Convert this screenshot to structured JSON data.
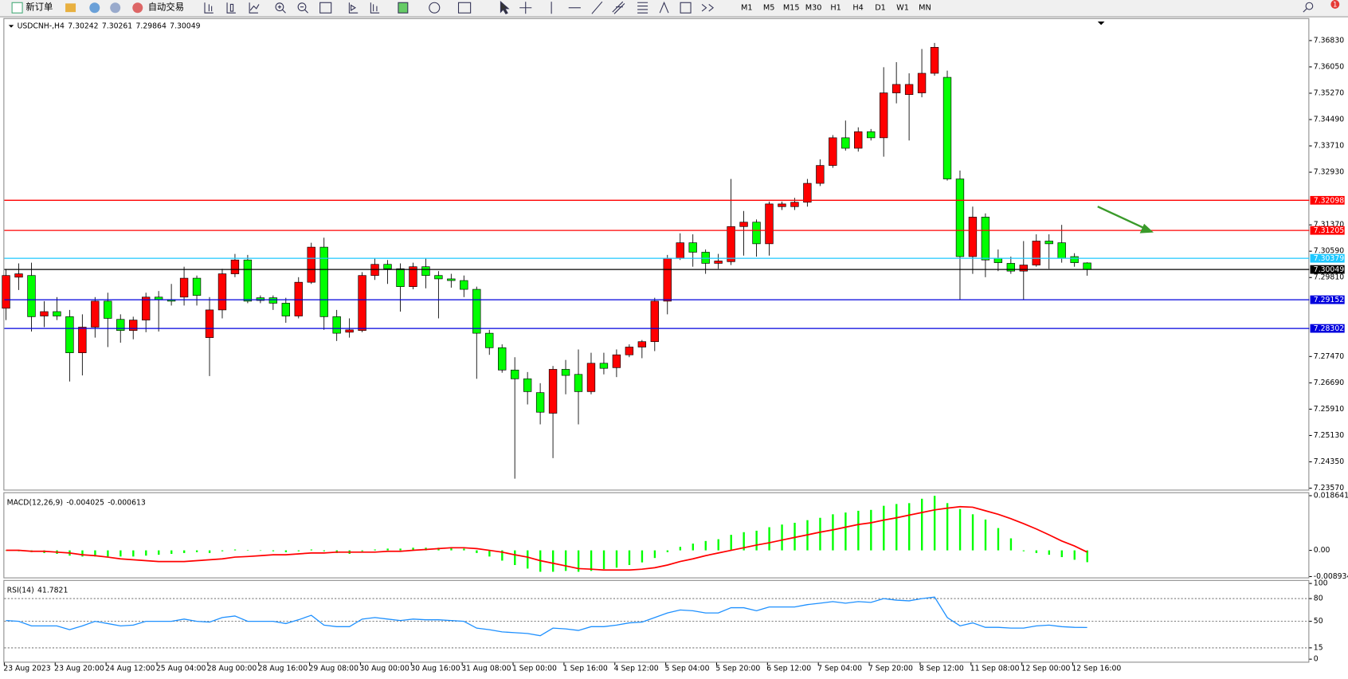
{
  "toolbar": {
    "new_order": "新订单",
    "auto_trading": "自动交易",
    "timeframes": [
      "M1",
      "M5",
      "M15",
      "M30",
      "H1",
      "H4",
      "D1",
      "W1",
      "MN"
    ],
    "badge": "1"
  },
  "chart_data": [
    {
      "type": "candlestick",
      "title": "USDCNH-,H4",
      "up_color": "#ff0000",
      "down_color": "#00ff00",
      "grid": false,
      "ylim": [
        7.235,
        7.3747
      ],
      "yticks": [
        {
          "value": 7.3683,
          "label": "7.36830"
        },
        {
          "value": 7.3605,
          "label": "7.36050"
        },
        {
          "value": 7.3527,
          "label": "7.35270"
        },
        {
          "value": 7.3449,
          "label": "7.34490"
        },
        {
          "value": 7.3371,
          "label": "7.33710"
        },
        {
          "value": 7.3293,
          "label": "7.32930"
        },
        {
          "value": 7.3137,
          "label": "7.31370"
        },
        {
          "value": 7.3059,
          "label": "7.30590"
        },
        {
          "value": 7.2981,
          "label": "7.29810"
        },
        {
          "value": 7.2747,
          "label": "7.27470"
        },
        {
          "value": 7.2669,
          "label": "7.26690"
        },
        {
          "value": 7.2591,
          "label": "7.25910"
        },
        {
          "value": 7.2513,
          "label": "7.25130"
        },
        {
          "value": 7.2435,
          "label": "7.24350"
        },
        {
          "value": 7.2357,
          "label": "7.23570"
        }
      ],
      "hlines": [
        {
          "value": 7.32098,
          "color": "#ff0000"
        },
        {
          "value": 7.31205,
          "color": "#ff0000"
        },
        {
          "value": 7.30379,
          "color": "#1ec8ff"
        },
        {
          "value": 7.30049,
          "color": "#000000"
        },
        {
          "value": 7.29152,
          "color": "#0000dd"
        },
        {
          "value": 7.28302,
          "color": "#0000dd"
        }
      ],
      "ohlc": [
        [
          7.289,
          7.3005,
          7.2855,
          7.2987
        ],
        [
          7.2982,
          7.3023,
          7.2944,
          7.2992
        ],
        [
          7.2987,
          7.3025,
          7.2821,
          7.2865
        ],
        [
          7.2867,
          7.2911,
          7.2834,
          7.288
        ],
        [
          7.288,
          7.2923,
          7.2855,
          7.2867
        ],
        [
          7.2865,
          7.2885,
          7.2673,
          7.2758
        ],
        [
          7.2758,
          7.2872,
          7.2691,
          7.2834
        ],
        [
          7.2834,
          7.2923,
          7.2803,
          7.2911
        ],
        [
          7.2911,
          7.2936,
          7.2775,
          7.286
        ],
        [
          7.2857,
          7.2872,
          7.2788,
          7.2824
        ],
        [
          7.2824,
          7.2865,
          7.2798,
          7.2855
        ],
        [
          7.2855,
          7.2936,
          7.2819,
          7.2923
        ],
        [
          7.2923,
          7.2941,
          7.2821,
          7.2916
        ],
        [
          7.2916,
          7.2962,
          7.2898,
          7.2911
        ],
        [
          7.2923,
          7.3013,
          7.2898,
          7.2979
        ],
        [
          7.2979,
          7.2987,
          7.2898,
          7.2928
        ],
        [
          7.2803,
          7.2923,
          7.2689,
          7.2885
        ],
        [
          7.2885,
          7.3007,
          7.286,
          7.2992
        ],
        [
          7.2992,
          7.3051,
          7.2982,
          7.3033
        ],
        [
          7.3033,
          7.3048,
          7.2905,
          7.2911
        ],
        [
          7.2921,
          7.2928,
          7.2905,
          7.2913
        ],
        [
          7.2921,
          7.2928,
          7.2885,
          7.2905
        ],
        [
          7.2905,
          7.2921,
          7.2847,
          7.2867
        ],
        [
          7.2867,
          7.2982,
          7.286,
          7.2967
        ],
        [
          7.2967,
          7.3084,
          7.2962,
          7.3071
        ],
        [
          7.3071,
          7.3099,
          7.2826,
          7.2865
        ],
        [
          7.2865,
          7.2885,
          7.2793,
          7.2816
        ],
        [
          7.2819,
          7.286,
          7.2803,
          7.2826
        ],
        [
          7.2824,
          7.2997,
          7.2819,
          7.2987
        ],
        [
          7.2987,
          7.3038,
          7.2974,
          7.302
        ],
        [
          7.302,
          7.3033,
          7.2962,
          7.3007
        ],
        [
          7.3007,
          7.3023,
          7.288,
          7.2954
        ],
        [
          7.2954,
          7.3025,
          7.2946,
          7.3013
        ],
        [
          7.3013,
          7.3038,
          7.2949,
          7.2987
        ],
        [
          7.2987,
          7.3,
          7.286,
          7.2977
        ],
        [
          7.2977,
          7.2992,
          7.2951,
          7.2972
        ],
        [
          7.2972,
          7.2987,
          7.2923,
          7.2946
        ],
        [
          7.2946,
          7.2954,
          7.2681,
          7.2816
        ],
        [
          7.2816,
          7.2826,
          7.2752,
          7.2773
        ],
        [
          7.2773,
          7.2783,
          7.2699,
          7.2707
        ],
        [
          7.2707,
          7.2745,
          7.2385,
          7.2681
        ],
        [
          7.2681,
          7.2701,
          7.2605,
          7.2643
        ],
        [
          7.264,
          7.2668,
          7.2546,
          7.2582
        ],
        [
          7.2579,
          7.2719,
          7.2446,
          7.2709
        ],
        [
          7.2709,
          7.2737,
          7.2635,
          7.2691
        ],
        [
          7.2694,
          7.2768,
          7.2546,
          7.2643
        ],
        [
          7.2643,
          7.2758,
          7.2635,
          7.2727
        ],
        [
          7.2727,
          7.2758,
          7.2694,
          7.2712
        ],
        [
          7.2714,
          7.2768,
          7.2686,
          7.2752
        ],
        [
          7.2752,
          7.2783,
          7.2745,
          7.2775
        ],
        [
          7.2775,
          7.2796,
          7.2742,
          7.2791
        ],
        [
          7.2791,
          7.2921,
          7.2763,
          7.2911
        ],
        [
          7.2911,
          7.3048,
          7.2872,
          7.3038
        ],
        [
          7.3038,
          7.3112,
          7.3033,
          7.3084
        ],
        [
          7.3084,
          7.3109,
          7.3013,
          7.3056
        ],
        [
          7.3056,
          7.3064,
          7.2992,
          7.3023
        ],
        [
          7.3023,
          7.3051,
          7.3007,
          7.303
        ],
        [
          7.3028,
          7.3273,
          7.3018,
          7.3132
        ],
        [
          7.3132,
          7.3178,
          7.3046,
          7.3145
        ],
        [
          7.3145,
          7.3153,
          7.3043,
          7.3081
        ],
        [
          7.3081,
          7.3206,
          7.3046,
          7.3199
        ],
        [
          7.3191,
          7.3206,
          7.3181,
          7.3199
        ],
        [
          7.3191,
          7.3217,
          7.3181,
          7.3204
        ],
        [
          7.3204,
          7.3273,
          7.3191,
          7.326
        ],
        [
          7.326,
          7.3331,
          7.3252,
          7.3313
        ],
        [
          7.3313,
          7.3403,
          7.3306,
          7.3395
        ],
        [
          7.3395,
          7.3446,
          7.3357,
          7.3364
        ],
        [
          7.3364,
          7.3426,
          7.3354,
          7.3413
        ],
        [
          7.3413,
          7.3421,
          7.3387,
          7.3395
        ],
        [
          7.3395,
          7.3604,
          7.3339,
          7.3528
        ],
        [
          7.3528,
          7.3619,
          7.3497,
          7.3553
        ],
        [
          7.3523,
          7.3586,
          7.3387,
          7.3553
        ],
        [
          7.3528,
          7.3658,
          7.3515,
          7.3586
        ],
        [
          7.3586,
          7.3676,
          7.3579,
          7.3663
        ],
        [
          7.3574,
          7.3594,
          7.3268,
          7.3273
        ],
        [
          7.3273,
          7.3298,
          7.2916,
          7.3043
        ],
        [
          7.3043,
          7.3191,
          7.2992,
          7.316
        ],
        [
          7.316,
          7.3171,
          7.2982,
          7.3033
        ],
        [
          7.3038,
          7.3064,
          7.3,
          7.3025
        ],
        [
          7.3023,
          7.3043,
          7.2992,
          7.3
        ],
        [
          7.3,
          7.3089,
          7.2916,
          7.3018
        ],
        [
          7.3018,
          7.3109,
          7.3013,
          7.3089
        ],
        [
          7.3089,
          7.3109,
          7.3007,
          7.3081
        ],
        [
          7.3084,
          7.3137,
          7.3025,
          7.3038
        ],
        [
          7.3043,
          7.3053,
          7.3013,
          7.3025
        ],
        [
          7.30242,
          7.30261,
          7.29864,
          7.30049
        ]
      ]
    },
    {
      "type": "combo",
      "title": "MACD(12,26,9)",
      "ylim": [
        -0.008934,
        0.018641
      ],
      "yticks": [
        0.018641,
        {
          "value": 0,
          "label": "0.00"
        },
        -0.008934
      ],
      "series": [
        {
          "type": "bar",
          "color": "#00ff00",
          "values": [
            0,
            -0.0003,
            -0.0006,
            -0.0009,
            -0.0012,
            -0.0018,
            -0.0021,
            -0.0021,
            -0.0021,
            -0.0021,
            -0.0021,
            -0.0018,
            -0.0015,
            -0.0012,
            -0.0009,
            -0.0006,
            -0.0009,
            -0.0003,
            0.0003,
            0.0001,
            -0.0001,
            -0.0003,
            -0.0006,
            -0.0003,
            0.0003,
            -0.0003,
            -0.0009,
            -0.0012,
            -0.0003,
            0.0003,
            0.0006,
            0.0006,
            0.0009,
            0.0009,
            0.0009,
            0.0009,
            0.0006,
            -0.0009,
            -0.0021,
            -0.0035,
            -0.005,
            -0.0062,
            -0.0073,
            -0.0073,
            -0.007,
            -0.0073,
            -0.007,
            -0.0064,
            -0.0059,
            -0.005,
            -0.0041,
            -0.0026,
            -0.0006,
            0.0012,
            0.0023,
            0.0032,
            0.0038,
            0.0053,
            0.0062,
            0.0067,
            0.0079,
            0.0088,
            0.0094,
            0.0103,
            0.0111,
            0.0123,
            0.0129,
            0.0135,
            0.0138,
            0.0152,
            0.0158,
            0.0161,
            0.0176,
            0.0186,
            0.0161,
            0.0141,
            0.0123,
            0.0105,
            0.0076,
            0.0041,
            -0.0003,
            -0.0009,
            -0.0015,
            -0.0023,
            -0.0032,
            -0.004025
          ]
        },
        {
          "type": "line",
          "color": "#ff0000",
          "values": [
            0,
            0,
            -0.0003,
            -0.0003,
            -0.0006,
            -0.0009,
            -0.0015,
            -0.0018,
            -0.0023,
            -0.0029,
            -0.0032,
            -0.0035,
            -0.0038,
            -0.0038,
            -0.0038,
            -0.0035,
            -0.0032,
            -0.0029,
            -0.0023,
            -0.0021,
            -0.0018,
            -0.0015,
            -0.0015,
            -0.0012,
            -0.0009,
            -0.0009,
            -0.0006,
            -0.0006,
            -0.0006,
            -0.0006,
            -0.0003,
            -0.0003,
            0,
            0.0003,
            0.0006,
            0.0009,
            0.0009,
            0.0006,
            0,
            -0.0006,
            -0.0015,
            -0.0023,
            -0.0035,
            -0.0044,
            -0.0053,
            -0.0062,
            -0.0064,
            -0.0067,
            -0.0067,
            -0.0067,
            -0.0064,
            -0.0059,
            -0.005,
            -0.0038,
            -0.0029,
            -0.0018,
            -0.0009,
            0,
            0.0009,
            0.0018,
            0.0026,
            0.0035,
            0.0044,
            0.0053,
            0.0062,
            0.007,
            0.0079,
            0.0088,
            0.0094,
            0.0103,
            0.0111,
            0.012,
            0.0129,
            0.0138,
            0.0144,
            0.0149,
            0.0147,
            0.0135,
            0.0123,
            0.0108,
            0.0091,
            0.0073,
            0.0053,
            0.0032,
            0.0015,
            -0.000613
          ]
        }
      ]
    },
    {
      "type": "line",
      "title": "RSI(14)",
      "ylim": [
        0,
        100
      ],
      "yticks": [
        100,
        80,
        50,
        15,
        0
      ],
      "categories": [
        "23 Aug 2023",
        null,
        null,
        null,
        "23 Aug 20:00",
        null,
        null,
        null,
        "24 Aug 12:00",
        null,
        null,
        null,
        "25 Aug 04:00",
        null,
        null,
        null,
        "28 Aug 00:00",
        null,
        null,
        null,
        "28 Aug 16:00",
        null,
        null,
        null,
        "29 Aug 08:00",
        null,
        null,
        null,
        "30 Aug 00:00",
        null,
        null,
        null,
        "30 Aug 16:00",
        null,
        null,
        null,
        "31 Aug 08:00",
        null,
        null,
        null,
        "1 Sep 00:00",
        null,
        null,
        null,
        "1 Sep 16:00",
        null,
        null,
        null,
        "4 Sep 12:00",
        null,
        null,
        null,
        "5 Sep 04:00",
        null,
        null,
        null,
        "5 Sep 20:00",
        null,
        null,
        null,
        "6 Sep 12:00",
        null,
        null,
        null,
        "7 Sep 04:00",
        null,
        null,
        null,
        "7 Sep 20:00",
        null,
        null,
        null,
        "8 Sep 12:00",
        null,
        null,
        null,
        "11 Sep 08:00",
        null,
        null,
        null,
        "12 Sep 00:00",
        null,
        null,
        null,
        "12 Sep 16:00",
        null
      ],
      "series": [
        {
          "color": "#1e90ff",
          "values": [
            51,
            50,
            44,
            44,
            44,
            39,
            44,
            50,
            47,
            44,
            45,
            50,
            50,
            50,
            53,
            50,
            49,
            55,
            57,
            50,
            50,
            50,
            47,
            52,
            58,
            45,
            43,
            43,
            53,
            55,
            53,
            51,
            53,
            52,
            52,
            51,
            50,
            41,
            39,
            36,
            35,
            34,
            31,
            41,
            40,
            38,
            43,
            43,
            45,
            48,
            49,
            55,
            61,
            65,
            64,
            61,
            61,
            68,
            68,
            64,
            69,
            69,
            69,
            72,
            74,
            76,
            74,
            76,
            75,
            80,
            78,
            77,
            80,
            82,
            55,
            44,
            48,
            42,
            42,
            41,
            41,
            44,
            45,
            43,
            42,
            41.7821
          ]
        }
      ]
    }
  ]
}
